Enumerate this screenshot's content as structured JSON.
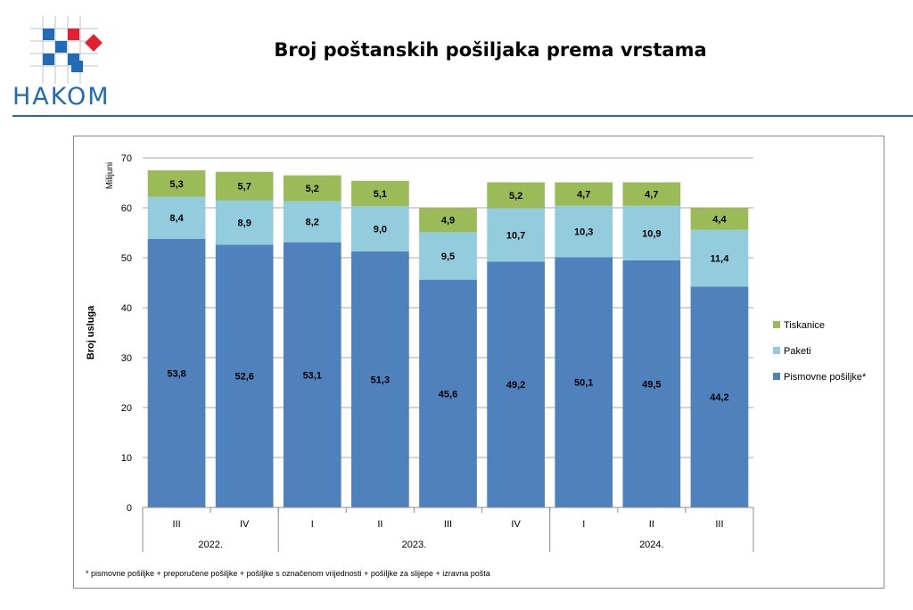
{
  "header": {
    "logo_text": "HAKOM",
    "title": "Broj poštanskih pošiljaka prema vrstama"
  },
  "colors": {
    "brand": "#1f6bb5",
    "logo_red": "#e5202e",
    "pismovne": "#4f81bd",
    "paketi": "#93cddd",
    "tiskanice": "#9bbb59"
  },
  "chart_data": {
    "type": "bar",
    "stacked": true,
    "ylabel": "Broj usluga",
    "unit_label": "Milijuni",
    "ylim": [
      0,
      70
    ],
    "yticks": [
      0,
      10,
      20,
      30,
      40,
      50,
      60,
      70
    ],
    "grid": true,
    "legend_position": "right",
    "categories": [
      "III",
      "IV",
      "I",
      "II",
      "III",
      "IV",
      "I",
      "II",
      "III"
    ],
    "year_groups": [
      {
        "label": "2022.",
        "count": 2
      },
      {
        "label": "2023.",
        "count": 4
      },
      {
        "label": "2024.",
        "count": 3
      }
    ],
    "series": [
      {
        "name": "Pismovne pošiljke*",
        "color": "#4f81bd",
        "values": [
          53.8,
          52.6,
          53.1,
          51.3,
          45.6,
          49.2,
          50.1,
          49.5,
          44.2
        ],
        "labels": [
          "53,8",
          "52,6",
          "53,1",
          "51,3",
          "45,6",
          "49,2",
          "50,1",
          "49,5",
          "44,2"
        ]
      },
      {
        "name": "Paketi",
        "color": "#93cddd",
        "values": [
          8.4,
          8.9,
          8.2,
          9.0,
          9.5,
          10.7,
          10.3,
          10.9,
          11.4
        ],
        "labels": [
          "8,4",
          "8,9",
          "8,2",
          "9,0",
          "9,5",
          "10,7",
          "10,3",
          "10,9",
          "11,4"
        ]
      },
      {
        "name": "Tiskanice",
        "color": "#9bbb59",
        "values": [
          5.3,
          5.7,
          5.2,
          5.1,
          4.9,
          5.2,
          4.7,
          4.7,
          4.4
        ],
        "labels": [
          "5,3",
          "5,7",
          "5,2",
          "5,1",
          "4,9",
          "5,2",
          "4,7",
          "4,7",
          "4,4"
        ]
      }
    ],
    "footnote": "* pismovne pošiljke + preporučene pošiljke + pošiljke s označenom vrijednosti + pošiljke za slijepe + izravna pošta"
  }
}
